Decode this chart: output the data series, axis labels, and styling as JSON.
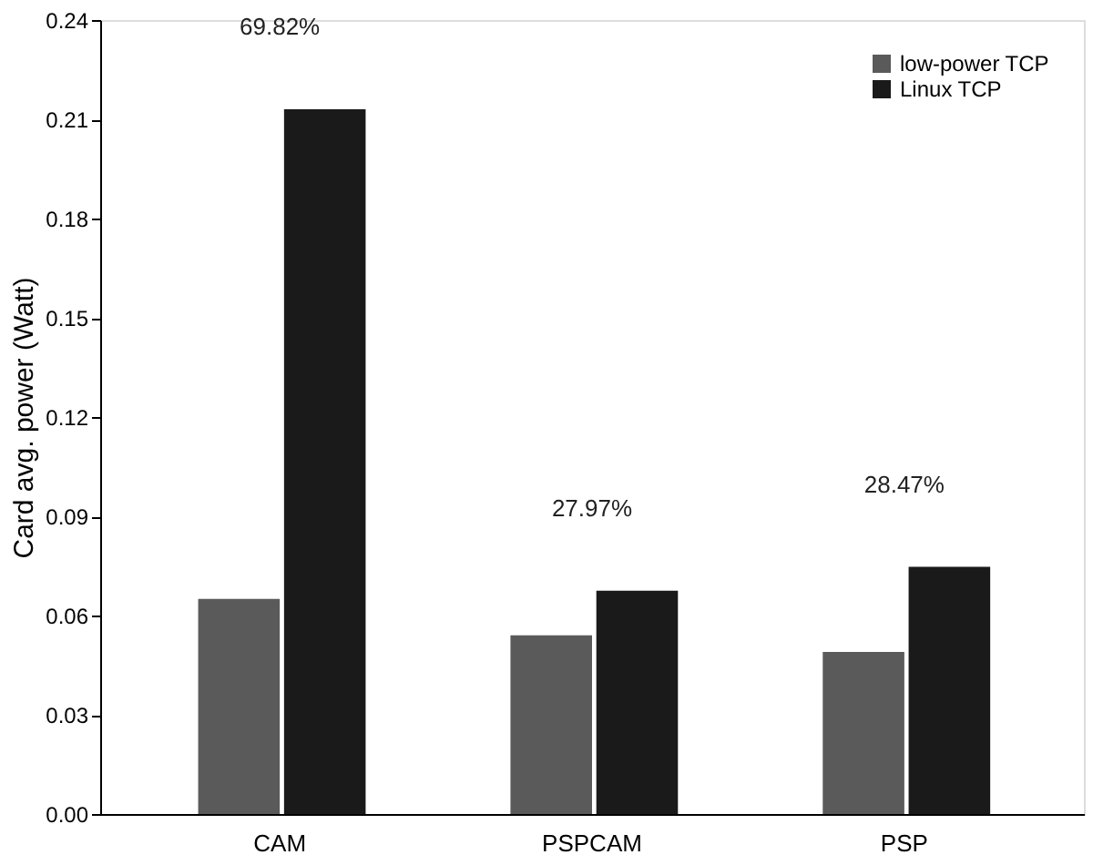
{
  "chart_data": {
    "type": "bar",
    "ylabel": "Card avg. power (Watt)",
    "categories": [
      "CAM",
      "PSPCAM",
      "PSP"
    ],
    "series": [
      {
        "name": "low-power TCP",
        "color": "#5a5a5a",
        "values": [
          0.065,
          0.054,
          0.049
        ]
      },
      {
        "name": "Linux TCP",
        "color": "#1a1a1a",
        "values": [
          0.213,
          0.0675,
          0.0747
        ]
      }
    ],
    "ylim": [
      0,
      0.24
    ],
    "yticks": [
      {
        "value": 0,
        "label": "0.00"
      },
      0.03,
      0.06,
      0.09,
      0.12,
      0.15,
      0.18,
      0.21,
      0.24
    ],
    "annotations": [
      "69.82%",
      "27.97%",
      "28.47%"
    ],
    "legend": "top right",
    "grid": false
  }
}
